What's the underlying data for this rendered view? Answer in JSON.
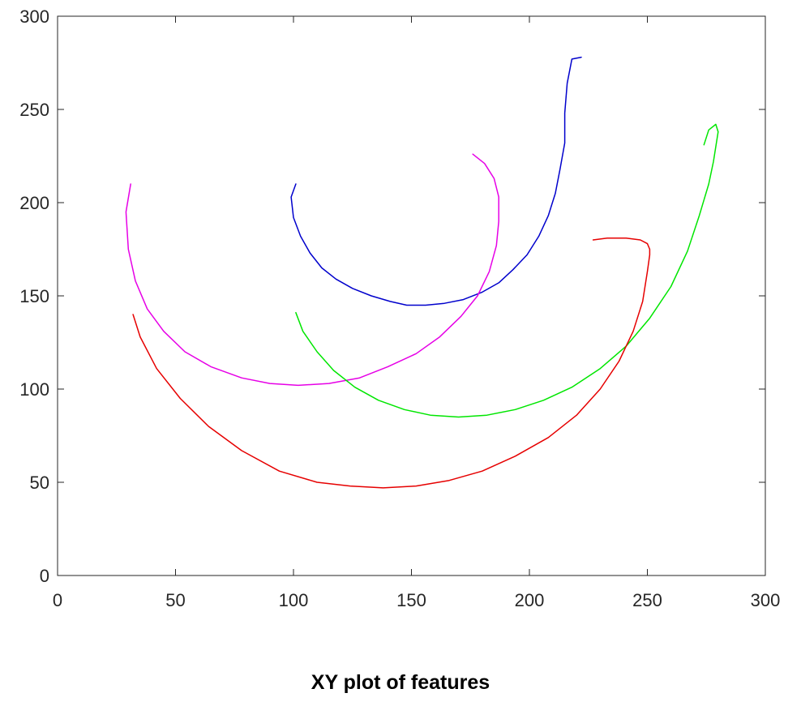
{
  "caption": "XY plot of features",
  "chart_data": {
    "type": "line",
    "title": "",
    "xlabel": "",
    "ylabel": "",
    "xlim": [
      0,
      300
    ],
    "ylim": [
      0,
      300
    ],
    "xticks": [
      0,
      50,
      100,
      150,
      200,
      250,
      300
    ],
    "yticks": [
      0,
      50,
      100,
      150,
      200,
      250,
      300
    ],
    "grid": false,
    "legend": "none",
    "series": [
      {
        "color": "#0000cc",
        "x": [
          101,
          99,
          100,
          103,
          107,
          112,
          118,
          125,
          133,
          141,
          148,
          156,
          164,
          172,
          180,
          187,
          193,
          199,
          204,
          208,
          211,
          213,
          215,
          215,
          216,
          218,
          222
        ],
        "y": [
          210,
          203,
          192,
          182,
          173,
          165,
          159,
          154,
          150,
          147,
          145,
          145,
          146,
          148,
          152,
          157,
          164,
          172,
          182,
          193,
          205,
          218,
          232,
          248,
          264,
          277,
          278
        ]
      },
      {
        "color": "#e600e6",
        "x": [
          176,
          181,
          185,
          187,
          187,
          186,
          183,
          178,
          171,
          162,
          152,
          140,
          128,
          115,
          102,
          90,
          78,
          65,
          54,
          45,
          38,
          33,
          30,
          29,
          31
        ],
        "y": [
          226,
          221,
          213,
          203,
          190,
          177,
          163,
          150,
          139,
          128,
          119,
          112,
          106,
          103,
          102,
          103,
          106,
          112,
          120,
          131,
          143,
          158,
          175,
          195,
          210
        ]
      },
      {
        "color": "#00e600",
        "x": [
          101,
          104,
          110,
          117,
          126,
          136,
          147,
          158,
          170,
          182,
          194,
          206,
          218,
          230,
          241,
          251,
          260,
          267,
          272,
          276,
          278,
          279,
          280,
          279,
          276,
          274
        ],
        "y": [
          141,
          131,
          120,
          110,
          101,
          94,
          89,
          86,
          85,
          86,
          89,
          94,
          101,
          111,
          123,
          138,
          155,
          174,
          193,
          210,
          222,
          230,
          238,
          242,
          239,
          231
        ]
      },
      {
        "color": "#e60000",
        "x": [
          32,
          35,
          42,
          52,
          64,
          78,
          94,
          110,
          124,
          138,
          152,
          166,
          180,
          194,
          208,
          220,
          230,
          238,
          244,
          248,
          250,
          251,
          251,
          250,
          247,
          241,
          233,
          227
        ],
        "y": [
          140,
          128,
          111,
          95,
          80,
          67,
          56,
          50,
          48,
          47,
          48,
          51,
          56,
          64,
          74,
          86,
          100,
          115,
          131,
          147,
          163,
          172,
          175,
          178,
          180,
          181,
          181,
          180
        ]
      }
    ]
  }
}
